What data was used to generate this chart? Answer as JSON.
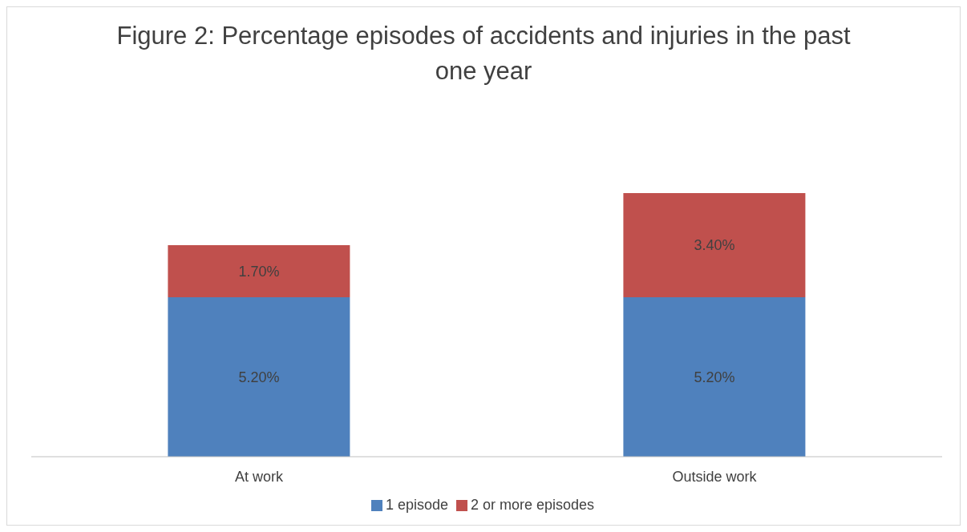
{
  "chart_data": {
    "type": "bar",
    "title": "Figure 2: Percentage episodes of accidents and injuries in the past one year",
    "categories": [
      "At work",
      "Outside work"
    ],
    "stacked": true,
    "legend": "bottom",
    "grid": false,
    "series": [
      {
        "name": "1 episode",
        "color": "#4f81bd",
        "values": [
          5.2,
          5.2
        ],
        "value_labels": [
          "5.20%",
          "5.20%"
        ]
      },
      {
        "name": "2 or more episodes",
        "color": "#c0504d",
        "values": [
          1.7,
          3.4
        ],
        "value_labels": [
          "1.70%",
          "3.40%"
        ]
      }
    ]
  }
}
